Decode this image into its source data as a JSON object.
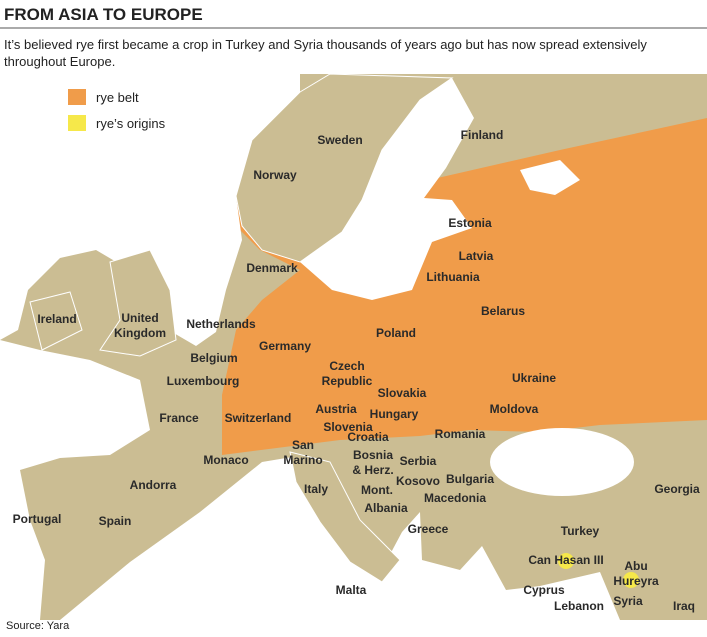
{
  "header": {
    "title": "FROM ASIA TO EUROPE",
    "subtitle": [
      "It’s believed rye first became a crop in Turkey and Syria thousands of years ago but has now spread extensively",
      "throughout Europe."
    ]
  },
  "legend": {
    "items": [
      {
        "label": "rye belt",
        "color": "#f09c4a"
      },
      {
        "label": "rye’s origins",
        "color": "#f6e84a"
      }
    ]
  },
  "map": {
    "labels": [
      [
        "Sweden"
      ],
      [
        "Finland"
      ],
      [
        "Norway"
      ],
      [
        "Estonia"
      ],
      [
        "Latvia"
      ],
      [
        "Denmark"
      ],
      [
        "Lithuania"
      ],
      [
        "Ireland"
      ],
      [
        "United",
        "Kingdom"
      ],
      [
        "Netherlands"
      ],
      [
        "Belarus"
      ],
      [
        "Poland"
      ],
      [
        "Germany"
      ],
      [
        "Belgium"
      ],
      [
        "Czech",
        "Republic"
      ],
      [
        "Luxembourg"
      ],
      [
        "Slovakia"
      ],
      [
        "Ukraine"
      ],
      [
        "France"
      ],
      [
        "Austria"
      ],
      [
        "Hungary"
      ],
      [
        "Moldova"
      ],
      [
        "Switzerland"
      ],
      [
        "Slovenia"
      ],
      [
        "Croatia"
      ],
      [
        "Romania"
      ],
      [
        "San",
        "Marino"
      ],
      [
        "Monaco"
      ],
      [
        "Bosnia",
        "& Herz."
      ],
      [
        "Serbia"
      ],
      [
        "Kosovo"
      ],
      [
        "Bulgaria"
      ],
      [
        "Andorra"
      ],
      [
        "Georgia"
      ],
      [
        "Italy"
      ],
      [
        "Mont."
      ],
      [
        "Macedonia"
      ],
      [
        "Albania"
      ],
      [
        "Portugal"
      ],
      [
        "Spain"
      ],
      [
        "Greece"
      ],
      [
        "Turkey"
      ],
      [
        "Can Hasan III"
      ],
      [
        "Abu",
        "Hureyra"
      ],
      [
        "Malta"
      ],
      [
        "Cyprus"
      ],
      [
        "Syria"
      ],
      [
        "Lebanon"
      ],
      [
        "Iraq"
      ]
    ]
  },
  "source": "Source: Yara"
}
